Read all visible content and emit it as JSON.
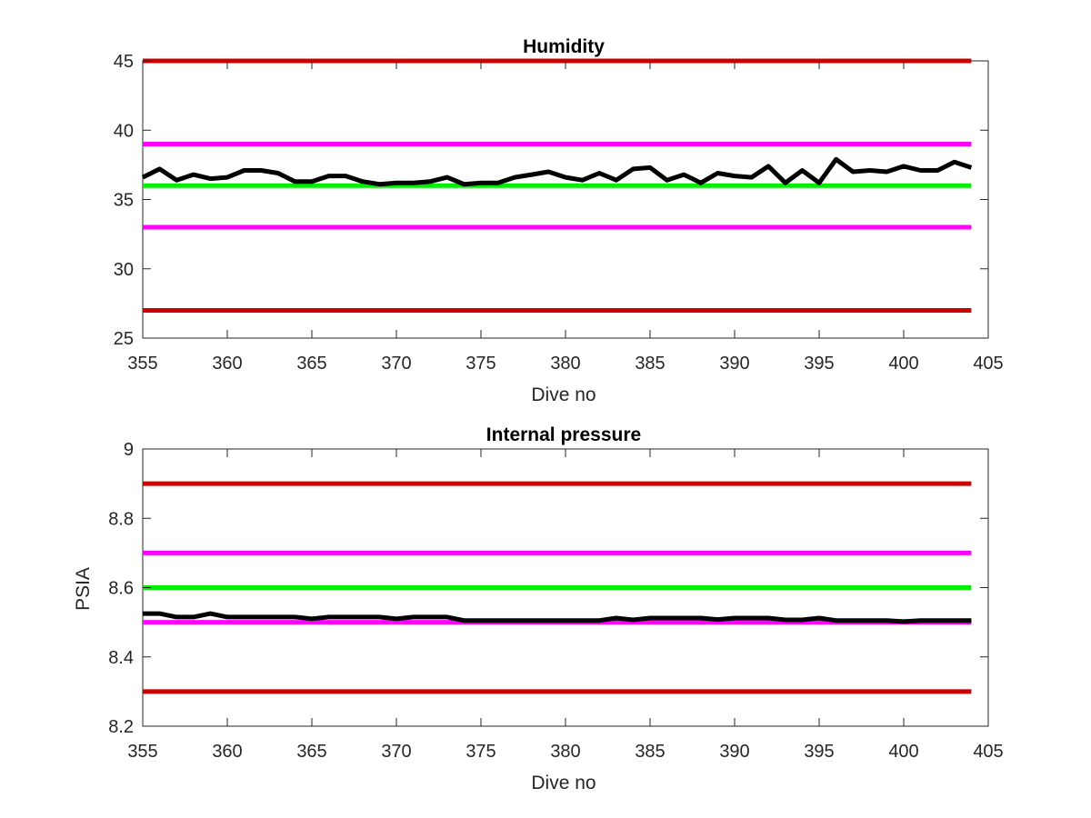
{
  "chart_data": [
    {
      "type": "line",
      "title": "Humidity",
      "xlabel": "Dive no",
      "ylabel": "",
      "xlim": [
        355,
        405
      ],
      "ylim": [
        25,
        45
      ],
      "xticks": [
        355,
        360,
        365,
        370,
        375,
        380,
        385,
        390,
        395,
        400,
        405
      ],
      "yticks": [
        25,
        30,
        35,
        40,
        45
      ],
      "xtick_labels": [
        "355",
        "360",
        "365",
        "370",
        "375",
        "380",
        "385",
        "390",
        "395",
        "400",
        "405"
      ],
      "ytick_labels": [
        "25",
        "30",
        "35",
        "40",
        "45"
      ],
      "grid": false,
      "threshold_lines": [
        {
          "y": 45,
          "color": "#cc0000",
          "x_range": [
            355,
            404
          ]
        },
        {
          "y": 39,
          "color": "#ff00ff",
          "x_range": [
            355,
            404
          ]
        },
        {
          "y": 36,
          "color": "#00ee00",
          "x_range": [
            355,
            404
          ]
        },
        {
          "y": 33,
          "color": "#ff00ff",
          "x_range": [
            355,
            404
          ]
        },
        {
          "y": 27,
          "color": "#cc0000",
          "x_range": [
            355,
            404
          ]
        }
      ],
      "series": [
        {
          "color": "#000000",
          "x": [
            355,
            356,
            357,
            358,
            359,
            360,
            361,
            362,
            363,
            364,
            365,
            366,
            367,
            368,
            369,
            370,
            371,
            372,
            373,
            374,
            375,
            376,
            377,
            378,
            379,
            380,
            381,
            382,
            383,
            384,
            385,
            386,
            387,
            388,
            389,
            390,
            391,
            392,
            393,
            394,
            395,
            396,
            397,
            398,
            399,
            400,
            401,
            402,
            403,
            404
          ],
          "values": [
            36.6,
            37.2,
            36.4,
            36.8,
            36.5,
            36.6,
            37.1,
            37.1,
            36.9,
            36.3,
            36.3,
            36.7,
            36.7,
            36.3,
            36.1,
            36.2,
            36.2,
            36.3,
            36.6,
            36.1,
            36.2,
            36.2,
            36.6,
            36.8,
            37.0,
            36.6,
            36.4,
            36.9,
            36.4,
            37.2,
            37.3,
            36.4,
            36.8,
            36.2,
            36.9,
            36.7,
            36.6,
            37.4,
            36.2,
            37.1,
            36.2,
            37.9,
            37.0,
            37.1,
            37.0,
            37.4,
            37.1,
            37.1,
            37.7,
            37.3
          ]
        }
      ]
    },
    {
      "type": "line",
      "title": "Internal pressure",
      "xlabel": "Dive no",
      "ylabel": "PSIA",
      "xlim": [
        355,
        405
      ],
      "ylim": [
        8.2,
        9.0
      ],
      "xticks": [
        355,
        360,
        365,
        370,
        375,
        380,
        385,
        390,
        395,
        400,
        405
      ],
      "yticks": [
        8.2,
        8.4,
        8.6,
        8.8,
        9.0
      ],
      "xtick_labels": [
        "355",
        "360",
        "365",
        "370",
        "375",
        "380",
        "385",
        "390",
        "395",
        "400",
        "405"
      ],
      "ytick_labels": [
        "8.2",
        "8.4",
        "8.6",
        "8.8",
        "9"
      ],
      "grid": false,
      "threshold_lines": [
        {
          "y": 8.9,
          "color": "#cc0000",
          "x_range": [
            355,
            404
          ]
        },
        {
          "y": 8.7,
          "color": "#ff00ff",
          "x_range": [
            355,
            404
          ]
        },
        {
          "y": 8.6,
          "color": "#00ee00",
          "x_range": [
            355,
            404
          ]
        },
        {
          "y": 8.5,
          "color": "#ff00ff",
          "x_range": [
            355,
            404
          ]
        },
        {
          "y": 8.3,
          "color": "#cc0000",
          "x_range": [
            355,
            404
          ]
        }
      ],
      "series": [
        {
          "color": "#000000",
          "x": [
            355,
            356,
            357,
            358,
            359,
            360,
            361,
            362,
            363,
            364,
            365,
            366,
            367,
            368,
            369,
            370,
            371,
            372,
            373,
            374,
            375,
            376,
            377,
            378,
            379,
            380,
            381,
            382,
            383,
            384,
            385,
            386,
            387,
            388,
            389,
            390,
            391,
            392,
            393,
            394,
            395,
            396,
            397,
            398,
            399,
            400,
            401,
            402,
            403,
            404
          ],
          "values": [
            8.525,
            8.525,
            8.515,
            8.515,
            8.525,
            8.515,
            8.515,
            8.515,
            8.515,
            8.515,
            8.51,
            8.515,
            8.515,
            8.515,
            8.515,
            8.51,
            8.515,
            8.515,
            8.515,
            8.505,
            8.505,
            8.505,
            8.505,
            8.505,
            8.505,
            8.505,
            8.505,
            8.505,
            8.512,
            8.507,
            8.512,
            8.512,
            8.512,
            8.512,
            8.508,
            8.512,
            8.512,
            8.512,
            8.507,
            8.507,
            8.512,
            8.505,
            8.505,
            8.505,
            8.505,
            8.502,
            8.505,
            8.505,
            8.505,
            8.505
          ]
        }
      ]
    }
  ]
}
